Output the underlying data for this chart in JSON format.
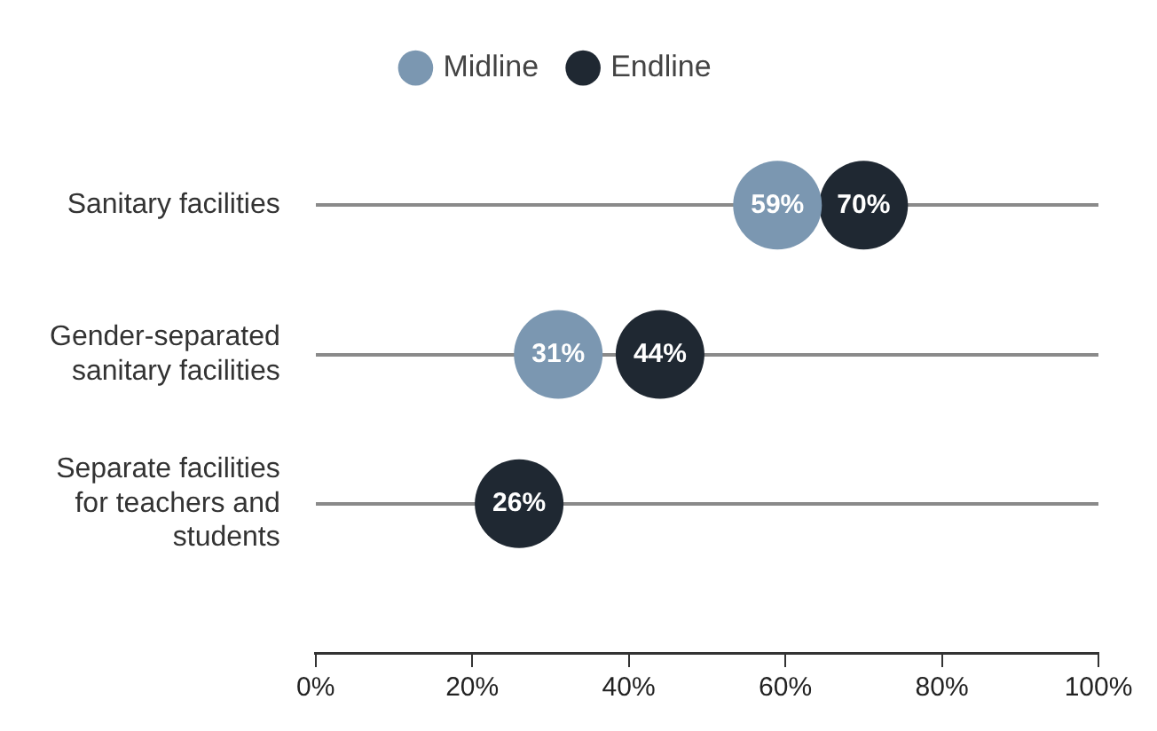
{
  "chart_data": {
    "type": "scatter",
    "orientation": "horizontal",
    "categories": [
      "Sanitary facilities",
      "Gender-separated sanitary facilities",
      "Separate facilities for teachers and students"
    ],
    "series": [
      {
        "name": "Midline",
        "color": "#7b97b1",
        "values": [
          59,
          31,
          null
        ],
        "value_labels": [
          "59%",
          "31%",
          null
        ]
      },
      {
        "name": "Endline",
        "color": "#1f2832",
        "values": [
          70,
          44,
          26
        ],
        "value_labels": [
          "70%",
          "44%",
          "26%"
        ]
      }
    ],
    "xlim": [
      0,
      100
    ],
    "xticks": [
      {
        "value": 0,
        "label": "0%"
      },
      {
        "value": 20,
        "label": "20%"
      },
      {
        "value": 40,
        "label": "40%"
      },
      {
        "value": 60,
        "label": "60%"
      },
      {
        "value": 80,
        "label": "80%"
      },
      {
        "value": 100,
        "label": "100%"
      }
    ],
    "grid": "y",
    "legend": "top",
    "marker": "circle"
  }
}
